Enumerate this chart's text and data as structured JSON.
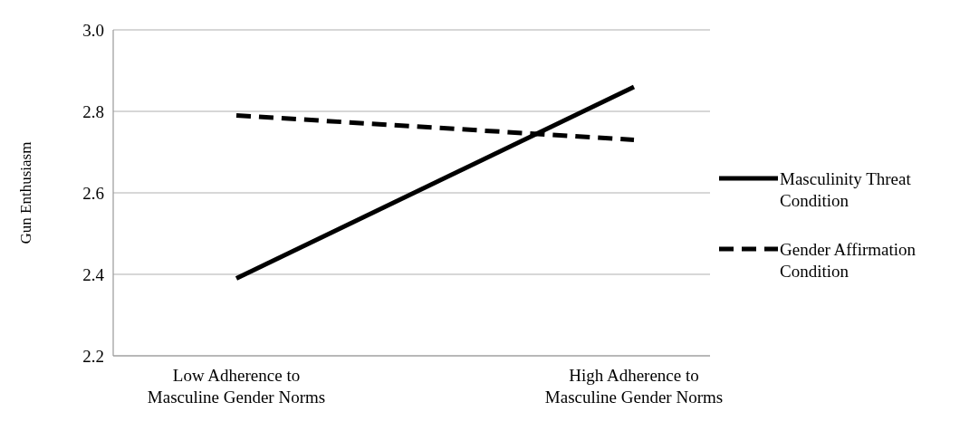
{
  "chart_data": {
    "type": "line",
    "ylabel": "Gun Enthusiasm",
    "categories": [
      "Low Adherence to Masculine Gender Norms",
      "High Adherence to Masculine Gender Norms"
    ],
    "ylim": [
      2.2,
      3.0
    ],
    "yticks": [
      {
        "value": 2.2,
        "label": "2.2"
      },
      {
        "value": 2.4,
        "label": "2.4"
      },
      {
        "value": 2.6,
        "label": "2.6"
      },
      {
        "value": 2.8,
        "label": "2.8"
      },
      {
        "value": 3.0,
        "label": "3.0"
      }
    ],
    "grid": "y",
    "legend": "right",
    "marker": "none",
    "series": [
      {
        "name": "Masculinity Threat Condition",
        "color": "#000000",
        "line_style": "solid",
        "values": [
          2.39,
          2.86
        ]
      },
      {
        "name": "Gender Affirmation Condition",
        "color": "#000000",
        "line_style": "dashed",
        "values": [
          2.79,
          2.73
        ]
      }
    ]
  }
}
